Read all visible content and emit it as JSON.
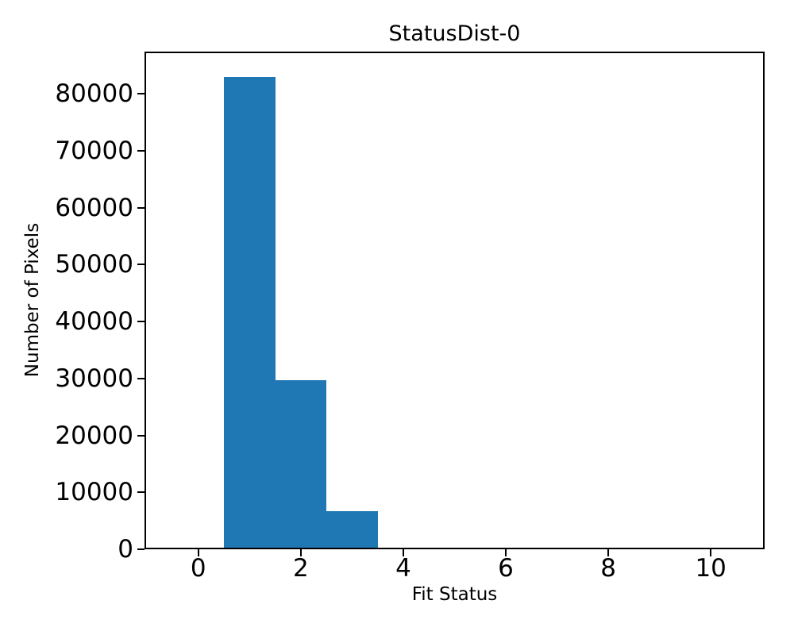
{
  "figure": {
    "background": "#ffffff",
    "axis_color": "#000000"
  },
  "chart_data": {
    "type": "bar",
    "chart_kind": "histogram",
    "title": "StatusDist-0",
    "xlabel": "Fit Status",
    "ylabel": "Number of Pixels",
    "bar_color": "#1f77b4",
    "bin_centers": [
      0,
      1,
      2,
      3,
      4,
      5,
      6,
      7,
      8,
      9,
      10
    ],
    "bin_width": 1,
    "bin_edges": [
      -0.5,
      0.5,
      1.5,
      2.5,
      3.5,
      4.5,
      5.5,
      6.5,
      7.5,
      8.5,
      9.5,
      10.5
    ],
    "values": [
      0,
      83000,
      29700,
      6700,
      350,
      0,
      0,
      0,
      0,
      0,
      0
    ],
    "xticks": [
      0,
      2,
      4,
      6,
      8,
      10
    ],
    "yticks": [
      0,
      10000,
      20000,
      30000,
      40000,
      50000,
      60000,
      70000,
      80000
    ],
    "xlim": [
      -1.05,
      11.05
    ],
    "ylim": [
      0,
      87400
    ],
    "grid": false,
    "legend": null
  }
}
